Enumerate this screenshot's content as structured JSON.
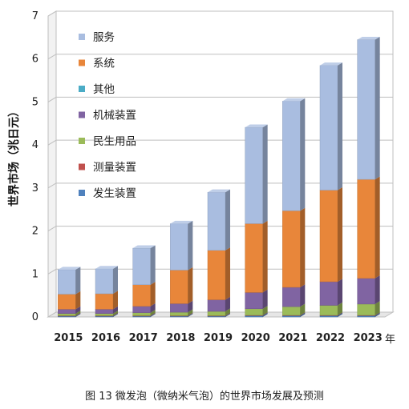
{
  "chart_data": {
    "type": "bar",
    "stacked": true,
    "three_d": true,
    "categories": [
      "2015",
      "2016",
      "2017",
      "2018",
      "2019",
      "2020",
      "2021",
      "2022",
      "2023"
    ],
    "series": [
      {
        "name": "发生装置",
        "color": "#4f81bd",
        "values": [
          0.02,
          0.02,
          0.02,
          0.02,
          0.02,
          0.03,
          0.03,
          0.03,
          0.03
        ]
      },
      {
        "name": "测量装置",
        "color": "#c0504d",
        "values": [
          0.01,
          0.01,
          0.01,
          0.01,
          0.01,
          0.01,
          0.01,
          0.01,
          0.01
        ]
      },
      {
        "name": "民生用品",
        "color": "#9bbb59",
        "values": [
          0.05,
          0.05,
          0.07,
          0.08,
          0.1,
          0.15,
          0.2,
          0.23,
          0.26
        ]
      },
      {
        "name": "机械装置",
        "color": "#8064a2",
        "values": [
          0.1,
          0.1,
          0.15,
          0.2,
          0.27,
          0.38,
          0.45,
          0.55,
          0.6
        ]
      },
      {
        "name": "其他",
        "color": "#4bacc6",
        "values": [
          0.0,
          0.0,
          0.0,
          0.0,
          0.0,
          0.0,
          0.0,
          0.0,
          0.0
        ]
      },
      {
        "name": "系统",
        "color": "#e8863a",
        "values": [
          0.35,
          0.36,
          0.5,
          0.78,
          1.15,
          1.6,
          1.78,
          2.13,
          2.3
        ]
      },
      {
        "name": "服务",
        "color": "#a9bde0",
        "values": [
          0.57,
          0.58,
          0.85,
          1.08,
          1.35,
          2.24,
          2.55,
          2.9,
          3.25
        ]
      }
    ],
    "legend_order": [
      "服务",
      "系统",
      "其他",
      "机械装置",
      "民生用品",
      "测量装置",
      "发生装置"
    ],
    "legend_position": "top-left",
    "ylabel": "世界市场（兆日元）",
    "xlabel": "年",
    "ylim": [
      0,
      7
    ],
    "yticks": [
      0,
      1,
      2,
      3,
      4,
      5,
      6,
      7
    ],
    "grid": true
  },
  "caption": "图 13 微发泡（微纳米气泡）的世界市场发展及预测"
}
